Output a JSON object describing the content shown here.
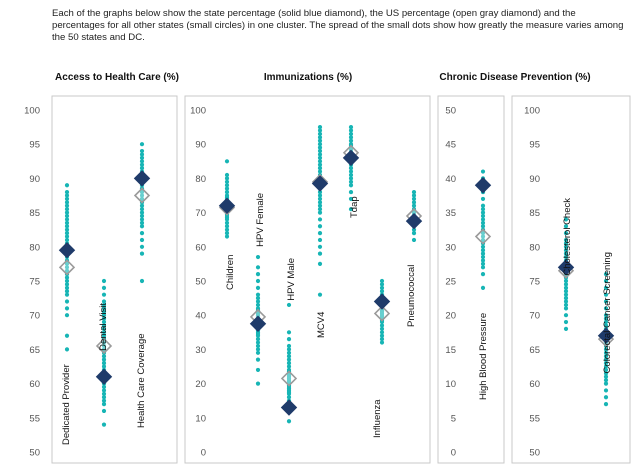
{
  "intro": "Each of the graphs below show the state percentage (solid blue diamond), the US percentage (open gray diamond) and the percentages for all other states (small circles) in one cluster. The spread of the small dots show how greatly the measure varies among the 50 states and DC.",
  "colors": {
    "state": "#1f3b6a",
    "us": "#9a9a9a",
    "dots": "#17b5b5",
    "frame": "#c9c9c9"
  },
  "chart_data": [
    {
      "type": "scatter",
      "title": "Access to Health Care (%)",
      "ylim": [
        50,
        100
      ],
      "yticks": [
        "50",
        "55",
        "60",
        "65",
        "70",
        "75",
        "80",
        "85",
        "90",
        "95",
        "100"
      ],
      "grid": false,
      "measures": [
        {
          "label": "Dedicated Provider",
          "state": 79.5,
          "us": 77,
          "dots": [
            65,
            67,
            70,
            71,
            72,
            73,
            73.5,
            74,
            74.5,
            75,
            75.5,
            76,
            76.5,
            77,
            77.5,
            78,
            78.5,
            79,
            79.5,
            80,
            80.5,
            81,
            81.5,
            82,
            82.5,
            83,
            83.5,
            84,
            84.5,
            85,
            85.5,
            86,
            86.5,
            87,
            87.5,
            88,
            89
          ]
        },
        {
          "label": "Dental Visit",
          "state": 61,
          "us": 65.5,
          "dots": [
            54,
            56,
            57,
            57.5,
            58,
            58.5,
            59,
            59.5,
            60,
            60.5,
            61,
            61.5,
            62,
            62.5,
            63,
            63.5,
            64,
            64.5,
            65,
            65.5,
            66,
            66.5,
            67,
            67.5,
            68,
            68.5,
            69,
            69.5,
            70,
            70.5,
            71,
            71.5,
            72,
            73,
            74,
            75
          ]
        },
        {
          "label": "Health Care Coverage",
          "state": 90,
          "us": 87.5,
          "dots": [
            75,
            79,
            80,
            81,
            82,
            83,
            83.5,
            84,
            84.5,
            85,
            85.5,
            86,
            86.5,
            87,
            87.5,
            88,
            88.5,
            89,
            89.5,
            90,
            90.5,
            91,
            91.5,
            92,
            92.5,
            93,
            93.5,
            94,
            95
          ]
        }
      ]
    },
    {
      "type": "scatter",
      "title": "Immunizations (%)",
      "ylim": [
        0,
        100
      ],
      "yticks": [
        "0",
        "10",
        "20",
        "30",
        "40",
        "50",
        "60",
        "70",
        "80",
        "90",
        "100"
      ],
      "grid": false,
      "measures": [
        {
          "label": "Children",
          "state": 72,
          "us": 71.5,
          "dots": [
            63,
            64,
            65,
            66,
            67,
            68,
            68.5,
            69,
            69.5,
            70,
            70.5,
            71,
            71.5,
            72,
            72.5,
            73,
            73.5,
            74,
            74.5,
            75,
            76,
            77,
            78,
            79,
            80,
            81,
            85
          ]
        },
        {
          "label": "HPV Female",
          "state": 37.5,
          "us": 39.5,
          "dots": [
            20,
            24,
            27,
            29,
            30,
            31,
            32,
            33,
            34,
            34.5,
            35,
            35.5,
            36,
            36.5,
            37,
            37.5,
            38,
            38.5,
            39,
            39.5,
            40,
            40.5,
            41,
            41.5,
            42,
            43,
            44,
            45,
            46,
            48,
            50,
            52,
            54,
            57
          ]
        },
        {
          "label": "HPV Male",
          "state": 13,
          "us": 21.5,
          "dots": [
            9,
            12,
            14,
            15,
            16,
            17,
            17.5,
            18,
            18.5,
            19,
            19.5,
            20,
            20.5,
            21,
            21.5,
            22,
            22.5,
            23,
            23.5,
            24,
            25,
            26,
            27,
            28,
            29,
            30,
            31,
            33,
            35,
            43
          ]
        },
        {
          "label": "MCV4",
          "state": 78.5,
          "us": 79,
          "dots": [
            46,
            55,
            58,
            60,
            62,
            64,
            66,
            68,
            70,
            71,
            72,
            73,
            74,
            75,
            76,
            77,
            78,
            79,
            80,
            81,
            82,
            83,
            84,
            85,
            86,
            87,
            88,
            89,
            90,
            91,
            92,
            93,
            94,
            95
          ]
        },
        {
          "label": "Tdap",
          "state": 86,
          "us": 87.5,
          "dots": [
            71,
            74,
            76,
            78,
            79,
            80,
            81,
            82,
            83,
            84,
            85,
            85.5,
            86,
            86.5,
            87,
            87.5,
            88,
            88.5,
            89,
            89.5,
            90,
            91,
            92,
            93,
            94,
            95
          ]
        },
        {
          "label": "Influenza",
          "state": 44,
          "us": 40.5,
          "dots": [
            32,
            33,
            34,
            35,
            36,
            37,
            38,
            38.5,
            39,
            39.5,
            40,
            40.5,
            41,
            41.5,
            42,
            42.5,
            43,
            44,
            45,
            46,
            47,
            48,
            49,
            50
          ]
        },
        {
          "label": "Pneumococcal",
          "state": 67.5,
          "us": 69,
          "dots": [
            62,
            64,
            65,
            66,
            66.5,
            67,
            67.5,
            68,
            68.5,
            69,
            69.5,
            70,
            70.5,
            71,
            72,
            73,
            74,
            75,
            76
          ]
        }
      ]
    },
    {
      "type": "scatter",
      "title": "Chronic Disease Prevention (%)",
      "measures": [
        {
          "label": "High Blood Pressure",
          "state": 39,
          "us": 31.5,
          "ylim": [
            0,
            50
          ],
          "yticks": [
            "0",
            "5",
            "10",
            "15",
            "20",
            "25",
            "30",
            "35",
            "40",
            "45",
            "50"
          ],
          "dots": [
            24,
            26,
            27,
            27.5,
            28,
            28.5,
            29,
            29.5,
            30,
            30.5,
            31,
            31.5,
            32,
            32.5,
            33,
            33.5,
            34,
            34.5,
            35,
            35.5,
            36,
            37,
            38,
            39,
            40,
            41
          ]
        },
        {
          "label": "Cholesterol Check",
          "state": 77,
          "us": 76.5,
          "ylim": [
            50,
            100
          ],
          "yticks": [
            "50",
            "55",
            "60",
            "65",
            "70",
            "75",
            "80",
            "85",
            "90",
            "95",
            "100"
          ],
          "dots": [
            68,
            69,
            70,
            71,
            71.5,
            72,
            72.5,
            73,
            73.5,
            74,
            74.5,
            75,
            75.5,
            76,
            76.5,
            77,
            77.5,
            78,
            78.5,
            79,
            79.5,
            80,
            80.5,
            81,
            82,
            83,
            84
          ]
        },
        {
          "label": "Colorectal Cancer Screening",
          "state": 67,
          "us": 66.5,
          "dots": [
            57,
            58,
            59,
            60,
            60.5,
            61,
            61.5,
            62,
            62.5,
            63,
            63.5,
            64,
            64.5,
            65,
            65.5,
            66,
            66.5,
            67,
            67.5,
            68,
            68.5,
            69,
            69.5,
            70,
            71,
            72,
            73,
            74,
            75,
            76
          ]
        }
      ]
    }
  ]
}
